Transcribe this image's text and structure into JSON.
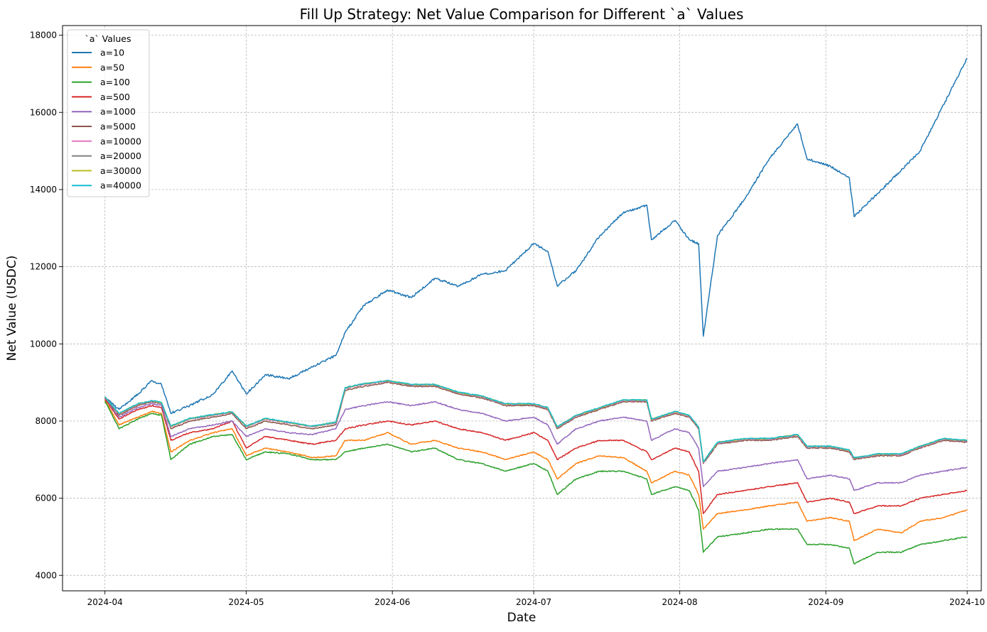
{
  "chart_data": {
    "type": "line",
    "title": "Fill Up Strategy: Net Value Comparison for Different `a` Values",
    "xlabel": "Date",
    "ylabel": "Net Value (USDC)",
    "x_ticks": [
      "2024-04",
      "2024-05",
      "2024-06",
      "2024-07",
      "2024-08",
      "2024-09",
      "2024-10"
    ],
    "y_ticks": [
      4000,
      6000,
      8000,
      10000,
      12000,
      14000,
      16000,
      18000
    ],
    "xlim": [
      "2024-03-23",
      "2024-10-04"
    ],
    "ylim": [
      3600,
      18250
    ],
    "grid": true,
    "legend_title": "`a` Values",
    "legend_position": "upper left",
    "x": [
      "2024-04-01",
      "2024-04-04",
      "2024-04-08",
      "2024-04-11",
      "2024-04-13",
      "2024-04-15",
      "2024-04-19",
      "2024-04-24",
      "2024-04-28",
      "2024-05-01",
      "2024-05-05",
      "2024-05-10",
      "2024-05-15",
      "2024-05-20",
      "2024-05-22",
      "2024-05-26",
      "2024-05-31",
      "2024-06-05",
      "2024-06-10",
      "2024-06-15",
      "2024-06-20",
      "2024-06-25",
      "2024-07-01",
      "2024-07-04",
      "2024-07-06",
      "2024-07-10",
      "2024-07-15",
      "2024-07-20",
      "2024-07-25",
      "2024-07-26",
      "2024-07-31",
      "2024-08-03",
      "2024-08-05",
      "2024-08-06",
      "2024-08-09",
      "2024-08-15",
      "2024-08-20",
      "2024-08-26",
      "2024-08-28",
      "2024-09-02",
      "2024-09-06",
      "2024-09-07",
      "2024-09-12",
      "2024-09-17",
      "2024-09-21",
      "2024-09-26",
      "2024-10-01"
    ],
    "series": [
      {
        "name": "a=10",
        "color": "#1f77b4",
        "values": [
          8620,
          8300,
          8700,
          9050,
          8950,
          8200,
          8400,
          8700,
          9300,
          8700,
          9200,
          9100,
          9400,
          9700,
          10300,
          11000,
          11400,
          11200,
          11700,
          11500,
          11800,
          11900,
          12600,
          12400,
          11500,
          11900,
          12800,
          13400,
          13600,
          12700,
          13200,
          12700,
          12600,
          10200,
          12800,
          13800,
          14800,
          15700,
          14800,
          14600,
          14300,
          13300,
          13900,
          14500,
          15000,
          16200,
          17400
        ]
      },
      {
        "name": "a=50",
        "color": "#ff7f0e",
        "values": [
          8550,
          7900,
          8100,
          8250,
          8200,
          7200,
          7500,
          7700,
          7800,
          7100,
          7300,
          7200,
          7050,
          7100,
          7500,
          7500,
          7700,
          7400,
          7500,
          7300,
          7200,
          7000,
          7200,
          7000,
          6500,
          6900,
          7100,
          7050,
          6700,
          6400,
          6700,
          6600,
          6100,
          5200,
          5600,
          5700,
          5800,
          5900,
          5400,
          5500,
          5400,
          4900,
          5200,
          5100,
          5400,
          5500,
          5700
        ]
      },
      {
        "name": "a=100",
        "color": "#2ca02c",
        "values": [
          8520,
          7800,
          8050,
          8200,
          8150,
          7000,
          7400,
          7600,
          7650,
          7000,
          7200,
          7150,
          7000,
          7000,
          7200,
          7300,
          7400,
          7200,
          7300,
          7000,
          6900,
          6700,
          6900,
          6700,
          6100,
          6500,
          6700,
          6700,
          6500,
          6100,
          6300,
          6200,
          5700,
          4600,
          5000,
          5100,
          5200,
          5200,
          4800,
          4800,
          4700,
          4300,
          4600,
          4600,
          4800,
          4900,
          5000
        ]
      },
      {
        "name": "a=500",
        "color": "#d62728",
        "values": [
          8580,
          8050,
          8300,
          8400,
          8350,
          7500,
          7700,
          7800,
          8000,
          7300,
          7600,
          7500,
          7400,
          7500,
          7800,
          7900,
          8000,
          7900,
          8000,
          7800,
          7700,
          7500,
          7700,
          7500,
          7000,
          7300,
          7500,
          7500,
          7200,
          7000,
          7300,
          7200,
          6700,
          5600,
          6100,
          6200,
          6300,
          6400,
          5900,
          6000,
          5900,
          5600,
          5800,
          5800,
          6000,
          6100,
          6200
        ]
      },
      {
        "name": "a=1000",
        "color": "#9467bd",
        "values": [
          8600,
          8100,
          8350,
          8450,
          8400,
          7600,
          7800,
          7900,
          8000,
          7600,
          7800,
          7700,
          7650,
          7800,
          8300,
          8400,
          8500,
          8400,
          8500,
          8300,
          8200,
          8000,
          8100,
          7900,
          7400,
          7800,
          8000,
          8100,
          8000,
          7500,
          7800,
          7700,
          7300,
          6300,
          6700,
          6800,
          6900,
          7000,
          6500,
          6600,
          6500,
          6200,
          6400,
          6400,
          6600,
          6700,
          6800
        ]
      },
      {
        "name": "a=5000",
        "color": "#8c564b",
        "values": [
          8610,
          8150,
          8400,
          8500,
          8450,
          7800,
          8000,
          8100,
          8200,
          7800,
          8000,
          7900,
          7800,
          7900,
          8800,
          8900,
          9000,
          8900,
          8900,
          8700,
          8600,
          8400,
          8400,
          8300,
          7800,
          8100,
          8300,
          8500,
          8500,
          8000,
          8200,
          8100,
          7800,
          6900,
          7400,
          7500,
          7500,
          7600,
          7300,
          7300,
          7200,
          7000,
          7100,
          7100,
          7300,
          7500,
          7450
        ]
      },
      {
        "name": "a=10000",
        "color": "#e377c2",
        "values": [
          8620,
          8180,
          8430,
          8520,
          8470,
          7850,
          8050,
          8150,
          8230,
          7850,
          8050,
          7950,
          7850,
          7950,
          8850,
          8950,
          9030,
          8930,
          8930,
          8730,
          8630,
          8430,
          8430,
          8330,
          7830,
          8130,
          8330,
          8530,
          8530,
          8030,
          8230,
          8130,
          7830,
          6930,
          7430,
          7530,
          7530,
          7630,
          7330,
          7330,
          7230,
          7030,
          7130,
          7130,
          7330,
          7530,
          7480
        ]
      },
      {
        "name": "a=20000",
        "color": "#7f7f7f",
        "values": [
          8625,
          8190,
          8440,
          8525,
          8475,
          7860,
          8060,
          8160,
          8235,
          7860,
          8060,
          7960,
          7860,
          7960,
          8860,
          8960,
          9040,
          8940,
          8940,
          8740,
          8640,
          8440,
          8440,
          8340,
          7840,
          8140,
          8340,
          8540,
          8540,
          8040,
          8240,
          8140,
          7840,
          6940,
          7440,
          7540,
          7540,
          7640,
          7340,
          7340,
          7240,
          7040,
          7140,
          7140,
          7340,
          7540,
          7490
        ]
      },
      {
        "name": "a=30000",
        "color": "#bcbd22",
        "values": [
          8628,
          8195,
          8445,
          8528,
          8478,
          7865,
          8065,
          8165,
          8238,
          7865,
          8065,
          7965,
          7865,
          7965,
          8865,
          8965,
          9045,
          8945,
          8945,
          8745,
          8645,
          8445,
          8445,
          8345,
          7845,
          8145,
          8345,
          8545,
          8545,
          8045,
          8245,
          8145,
          7845,
          6945,
          7445,
          7545,
          7545,
          7645,
          7345,
          7345,
          7245,
          7045,
          7145,
          7145,
          7345,
          7545,
          7495
        ]
      },
      {
        "name": "a=40000",
        "color": "#17becf",
        "values": [
          8630,
          8200,
          8450,
          8530,
          8480,
          7870,
          8070,
          8170,
          8240,
          7870,
          8070,
          7970,
          7870,
          7970,
          8870,
          8970,
          9050,
          8950,
          8950,
          8750,
          8650,
          8450,
          8450,
          8350,
          7850,
          8150,
          8350,
          8550,
          8550,
          8050,
          8250,
          8150,
          7850,
          6950,
          7450,
          7550,
          7550,
          7650,
          7350,
          7350,
          7250,
          7050,
          7150,
          7150,
          7350,
          7550,
          7500
        ]
      }
    ]
  }
}
